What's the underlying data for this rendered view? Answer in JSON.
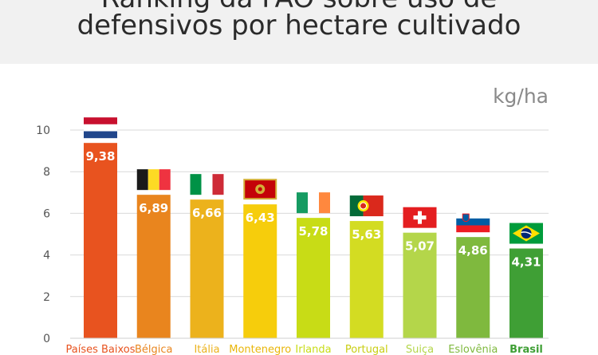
{
  "header": {
    "title_line1": "Ranking da FAO sobre uso de",
    "title_line2": "defensivos por hectare cultivado"
  },
  "chart_data": {
    "type": "bar",
    "unit": "kg/ha",
    "categories": [
      "Países Baixos",
      "Bélgica",
      "Itália",
      "Montenegro",
      "Irlanda",
      "Portugal",
      "Suiça",
      "Eslovênia",
      "Brasil"
    ],
    "values": [
      9.38,
      6.89,
      6.66,
      6.43,
      5.78,
      5.63,
      5.07,
      4.86,
      4.31
    ],
    "value_labels": [
      "9,38",
      "6,89",
      "6,66",
      "6,43",
      "5,78",
      "5,63",
      "5,07",
      "4,86",
      "4,31"
    ],
    "yticks": [
      0,
      2,
      4,
      6,
      8,
      10
    ],
    "ylim": [
      0,
      10
    ],
    "grid": true,
    "colors": [
      "#e8531f",
      "#e9851e",
      "#ecb21c",
      "#f6cd0c",
      "#c8dc16",
      "#d3dc22",
      "#b4d64a",
      "#7fb93e",
      "#3f9f35"
    ],
    "label_colors": [
      "#e8531f",
      "#e9851e",
      "#ecb21c",
      "#e9b60a",
      "#c8dc16",
      "#c9ce12",
      "#b4d64a",
      "#7fb93e",
      "#3f9f35"
    ],
    "flags": [
      "netherlands-flag",
      "belgium-flag",
      "italy-flag",
      "montenegro-flag",
      "ireland-flag",
      "portugal-flag",
      "switzerland-flag",
      "slovenia-flag",
      "brazil-flag"
    ]
  }
}
